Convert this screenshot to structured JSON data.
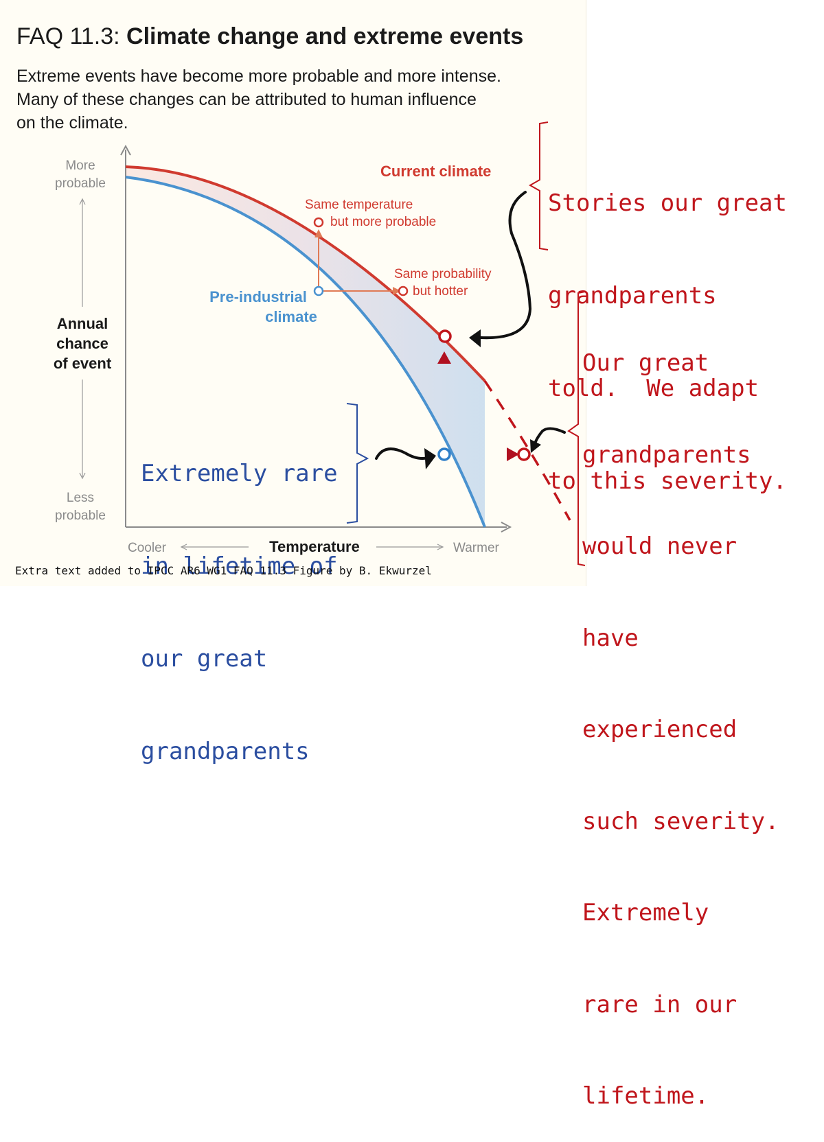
{
  "header": {
    "title_prefix": "FAQ 11.3: ",
    "title_bold": "Climate change and extreme events",
    "subtitle_lines": [
      "Extreme events have become more probable and more intense.",
      "Many of these changes can be attributed to human influence",
      "on the climate."
    ]
  },
  "axes": {
    "y_top": [
      "More",
      "probable"
    ],
    "y_bottom": [
      "Less",
      "probable"
    ],
    "y_title": [
      "Annual",
      "chance",
      "of event"
    ],
    "x_left": "Cooler",
    "x_right": "Warmer",
    "x_title": "Temperature"
  },
  "curves": {
    "current_label": "Current climate",
    "preindustrial_label": [
      "Pre-industrial",
      "climate"
    ],
    "same_temp_label": [
      "Same temperature",
      "but more probable"
    ],
    "same_prob_label": [
      "Same probability",
      "but hotter"
    ],
    "colors": {
      "current": "#d03a2f",
      "preindustrial": "#4a92cf",
      "arrow": "#e07a55",
      "dark_red": "#b01020",
      "navy": "#2b4ea0"
    }
  },
  "annotations": {
    "stories": [
      "Stories our great",
      "grandparents",
      "told.  We adapt",
      "to this severity."
    ],
    "never": [
      "Our great",
      "grandparents",
      "would never",
      "have",
      "experienced",
      "such severity.",
      "Extremely",
      "rare in our",
      "lifetime."
    ],
    "rare": [
      "Extremely rare",
      "in lifetime of",
      "our great",
      "grandparents"
    ]
  },
  "credit": "Extra text added to IPCC AR6 WG1 FAQ 11.3 Figure by B. Ekwurzel"
}
